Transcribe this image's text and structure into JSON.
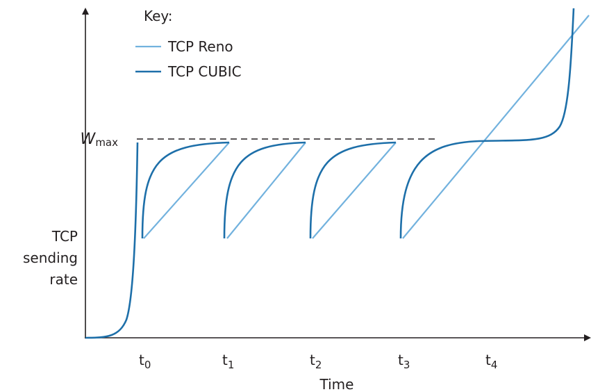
{
  "legend": {
    "title": "Key:",
    "items": [
      "TCP Reno",
      "TCP CUBIC"
    ]
  },
  "y_axis": {
    "wmax": {
      "base": "W",
      "sub": "max"
    },
    "label": [
      "TCP",
      "sending",
      "rate"
    ]
  },
  "x_axis": {
    "ticks": [
      {
        "base": "t",
        "sub": "0"
      },
      {
        "base": "t",
        "sub": "1"
      },
      {
        "base": "t",
        "sub": "2"
      },
      {
        "base": "t",
        "sub": "3"
      },
      {
        "base": "t",
        "sub": "4"
      }
    ],
    "label": "Time"
  }
}
